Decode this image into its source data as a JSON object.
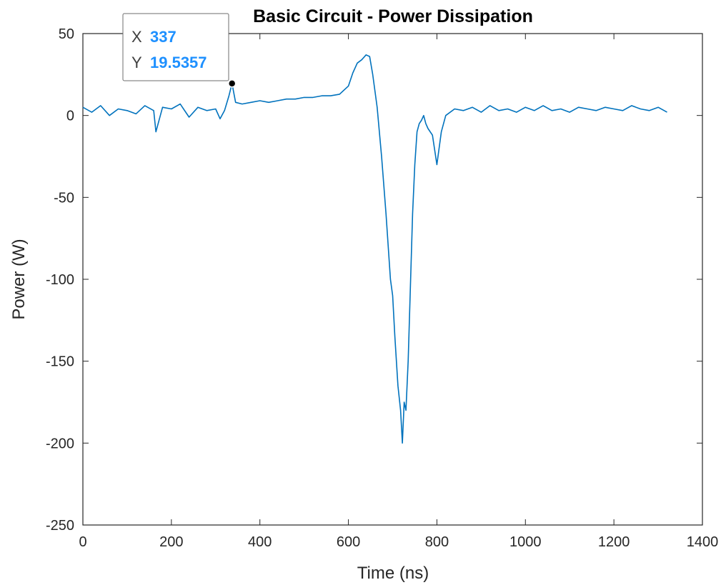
{
  "chart_data": {
    "type": "line",
    "title": "Basic Circuit - Power Dissipation",
    "xlabel": "Time (ns)",
    "ylabel": "Power (W)",
    "xlim": [
      0,
      1400
    ],
    "ylim": [
      -250,
      50
    ],
    "xticks": [
      "0",
      "200",
      "400",
      "600",
      "800",
      "1000",
      "1200",
      "1400"
    ],
    "yticks": [
      "50",
      "0",
      "-50",
      "-100",
      "-150",
      "-200",
      "-250"
    ],
    "grid": false,
    "series_color": "#0072BD",
    "series": [
      {
        "x": [
          0,
          20,
          40,
          60,
          80,
          100,
          120,
          140,
          160,
          165,
          180,
          200,
          220,
          240,
          260,
          280,
          300,
          310,
          320,
          330,
          337,
          345,
          360,
          380,
          400,
          420,
          440,
          460,
          480,
          500,
          520,
          540,
          560,
          580,
          600,
          610,
          620,
          630,
          640,
          648,
          655,
          665,
          675,
          685,
          695,
          700,
          705,
          712,
          718,
          722,
          726,
          730,
          735,
          740,
          745,
          750,
          755,
          760,
          765,
          770,
          775,
          780,
          790,
          800,
          810,
          820,
          840,
          860,
          880,
          900,
          920,
          940,
          960,
          980,
          1000,
          1020,
          1040,
          1060,
          1080,
          1100,
          1120,
          1140,
          1160,
          1180,
          1200,
          1220,
          1240,
          1260,
          1280,
          1300,
          1320
        ],
        "y": [
          5,
          2,
          6,
          0,
          4,
          3,
          1,
          6,
          3,
          -10,
          5,
          4,
          7,
          -1,
          5,
          3,
          4,
          -2,
          3,
          12,
          19.5,
          8,
          7,
          8,
          9,
          8,
          9,
          10,
          10,
          11,
          11,
          12,
          12,
          13,
          18,
          26,
          32,
          34,
          37,
          36,
          25,
          5,
          -25,
          -60,
          -100,
          -110,
          -135,
          -165,
          -180,
          -200,
          -175,
          -180,
          -150,
          -105,
          -60,
          -30,
          -10,
          -5,
          -3,
          0,
          -5,
          -8,
          -12,
          -30,
          -10,
          0,
          4,
          3,
          5,
          2,
          6,
          3,
          4,
          2,
          5,
          3,
          6,
          3,
          4,
          2,
          5,
          4,
          3,
          5,
          4,
          3,
          6,
          4,
          3,
          5,
          2
        ]
      }
    ],
    "datatip": {
      "x_key": "X",
      "x_value": "337",
      "y_key": "Y",
      "y_value": "19.5357",
      "value_color": "#1E90FF"
    }
  }
}
